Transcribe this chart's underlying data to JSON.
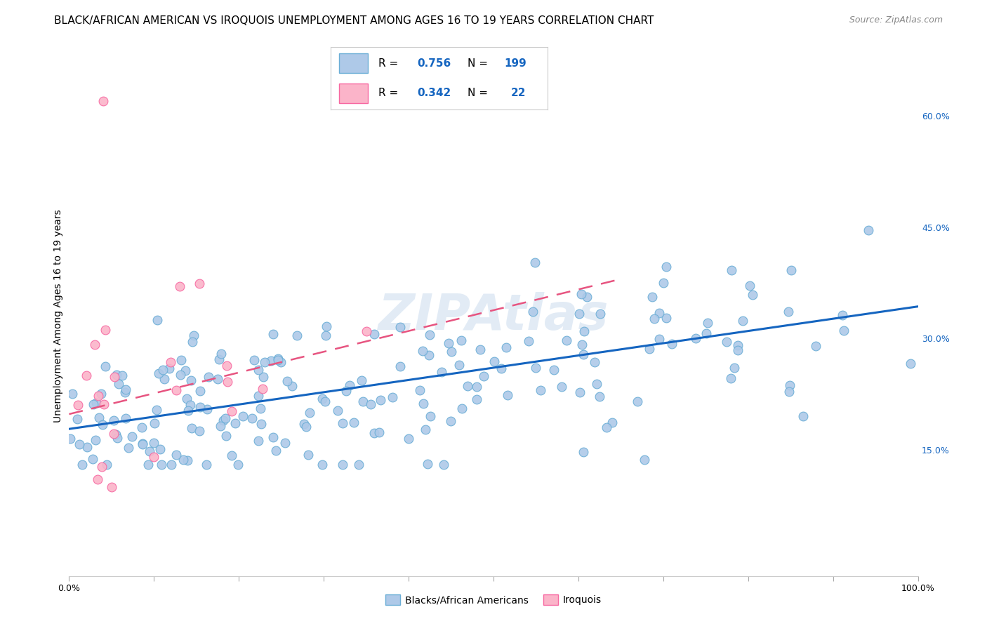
{
  "title": "BLACK/AFRICAN AMERICAN VS IROQUOIS UNEMPLOYMENT AMONG AGES 16 TO 19 YEARS CORRELATION CHART",
  "source": "Source: ZipAtlas.com",
  "ylabel": "Unemployment Among Ages 16 to 19 years",
  "xlim": [
    0.0,
    1.0
  ],
  "ylim": [
    -0.02,
    0.68
  ],
  "xticks": [
    0.0,
    0.1,
    0.2,
    0.3,
    0.4,
    0.5,
    0.6,
    0.7,
    0.8,
    0.9,
    1.0
  ],
  "xticklabels": [
    "0.0%",
    "",
    "",
    "",
    "",
    "",
    "",
    "",
    "",
    "",
    "100.0%"
  ],
  "yticks": [
    0.15,
    0.3,
    0.45,
    0.6
  ],
  "yticklabels": [
    "15.0%",
    "30.0%",
    "45.0%",
    "60.0%"
  ],
  "blue_dot_face": "#aec9e8",
  "blue_dot_edge": "#6baed6",
  "pink_dot_face": "#fbb4c9",
  "pink_dot_edge": "#f768a1",
  "blue_line_color": "#1565c0",
  "pink_line_color": "#e75480",
  "blue_R": 0.756,
  "blue_N": 199,
  "pink_R": 0.342,
  "pink_N": 22,
  "watermark": "ZIPAtlas",
  "watermark_color": "#b8cfe8",
  "grid_color": "#cccccc",
  "background_color": "#ffffff",
  "title_fontsize": 11,
  "axis_label_fontsize": 10,
  "tick_fontsize": 9,
  "legend_fontsize": 11,
  "source_fontsize": 9,
  "legend_value_color": "#1565c0",
  "blue_line_intercept": 0.178,
  "blue_line_slope": 0.165,
  "pink_line_intercept": 0.198,
  "pink_line_slope": 0.28
}
